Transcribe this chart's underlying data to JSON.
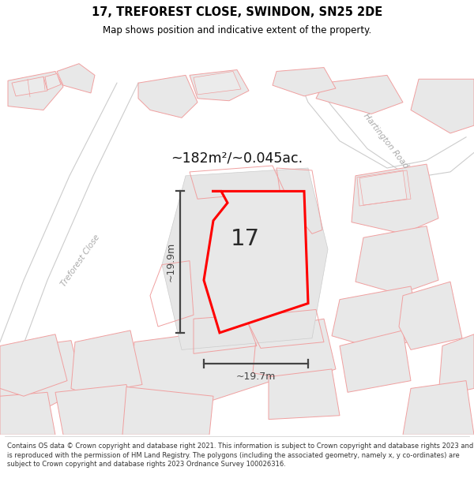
{
  "title": "17, TREFOREST CLOSE, SWINDON, SN25 2DE",
  "subtitle": "Map shows position and indicative extent of the property.",
  "footer": "Contains OS data © Crown copyright and database right 2021. This information is subject to Crown copyright and database rights 2023 and is reproduced with the permission of HM Land Registry. The polygons (including the associated geometry, namely x, y co-ordinates) are subject to Crown copyright and database rights 2023 Ordnance Survey 100026316.",
  "area_text": "~182m²/~0.045ac.",
  "dim_width": "~19.7m",
  "dim_height": "~19.9m",
  "label_17": "17",
  "road_label_1": "Treforest Close",
  "road_label_2": "Hartington Road",
  "bg_color": "#ffffff",
  "building_fill": "#e8e8e8",
  "building_edge": "#f0a0a0",
  "road_edge": "#cccccc",
  "plot_fill": "#e2e2e2",
  "plot_outline": "#ff0000",
  "dim_color": "#444444",
  "road_label_color": "#aaaaaa",
  "title_color": "#000000",
  "footer_color": "#333333",
  "area_text_color": "#111111"
}
